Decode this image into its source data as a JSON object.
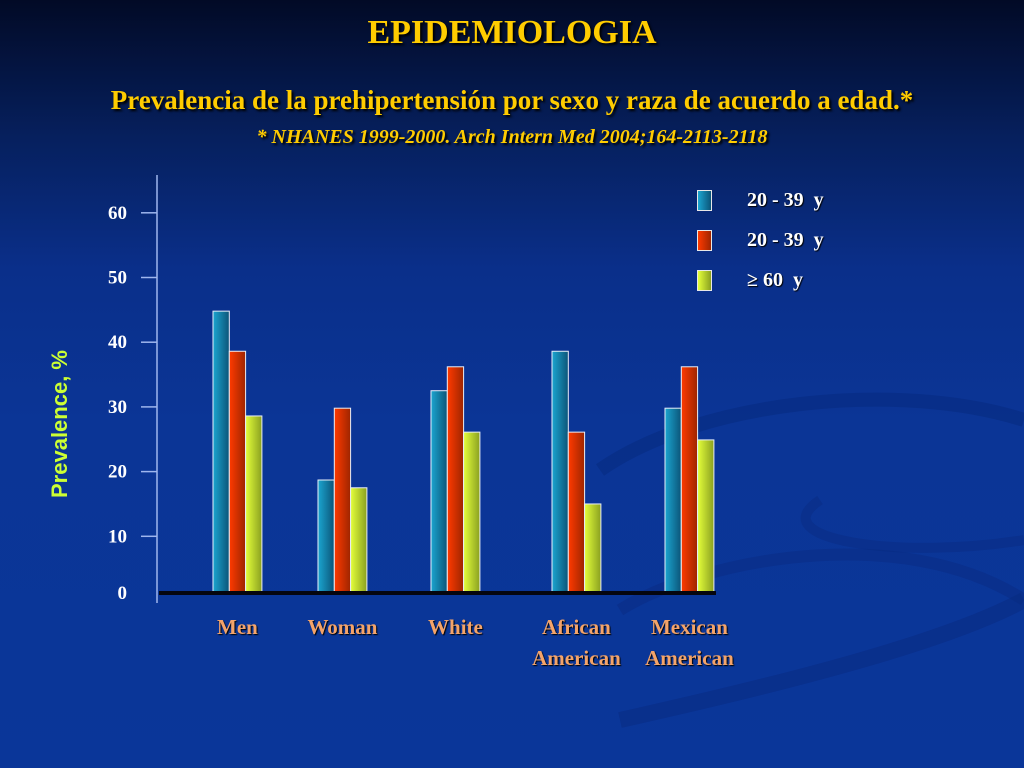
{
  "slide": {
    "title": "EPIDEMIOLOGIA",
    "subtitle": "Prevalencia de la prehipertensión por sexo y raza de acuerdo a edad.*",
    "source": "* NHANES 1999-2000. Arch Intern Med 2004;164-2113-2118"
  },
  "colors": {
    "background": "#0a3699",
    "title": "#ffcc00",
    "ylabel": "#ccff33",
    "category_label": "#f4a46a",
    "series": [
      "#1a8ab8",
      "#e03000",
      "#ccee33"
    ]
  },
  "chart_data": {
    "type": "bar",
    "title": "",
    "xlabel": "",
    "ylabel": "Prevalence, %",
    "ylim": [
      0,
      60
    ],
    "yticks": [
      0,
      10,
      20,
      30,
      40,
      50,
      60
    ],
    "grid": false,
    "legend_position": "top-right",
    "categories": [
      [
        "Men"
      ],
      [
        "Woman"
      ],
      [
        "White"
      ],
      [
        "African",
        "American"
      ],
      [
        "Mexican",
        "American"
      ]
    ],
    "series": [
      {
        "name": "20 - 39  y",
        "values": [
          44.8,
          18.7,
          32.5,
          38.6,
          29.8
        ]
      },
      {
        "name": "20 - 39  y",
        "values": [
          38.6,
          29.8,
          36.2,
          26.1,
          36.2
        ]
      },
      {
        "name": "≥ 60  y",
        "values": [
          28.6,
          17.5,
          26.1,
          15.0,
          24.9
        ]
      }
    ]
  }
}
